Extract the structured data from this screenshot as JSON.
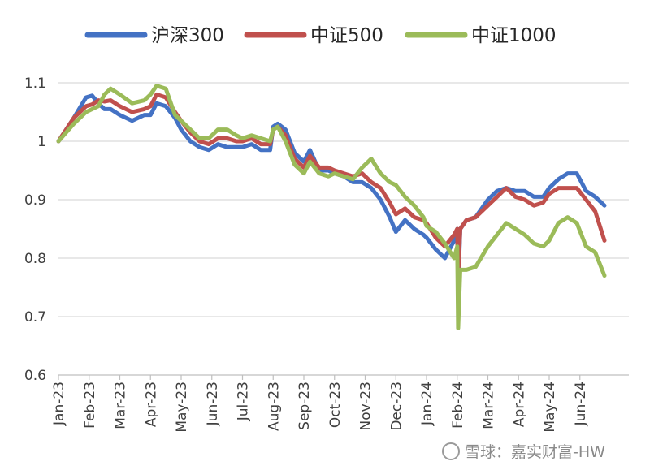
{
  "chart_data": {
    "type": "line",
    "title": "",
    "xlabel": "",
    "ylabel": "",
    "ylim": [
      0.6,
      1.1
    ],
    "yticks": [
      "0.6",
      "0.7",
      "0.8",
      "0.9",
      "1",
      "1.1"
    ],
    "grid": "horizontal",
    "legend": "top",
    "categories": [
      "Jan-23",
      "Feb-23",
      "Mar-23",
      "Apr-23",
      "May-23",
      "Jun-23",
      "Jul-23",
      "Aug-23",
      "Sep-23",
      "Oct-23",
      "Nov-23",
      "Dec-23",
      "Jan-24",
      "Feb-24",
      "Mar-24",
      "Apr-24",
      "May-24",
      "Jun-24"
    ],
    "series": [
      {
        "name": "沪深300",
        "color": "#4472C4",
        "x": [
          0,
          0.5,
          0.9,
          1.1,
          1.3,
          1.5,
          1.7,
          2,
          2.4,
          2.8,
          3,
          3.2,
          3.5,
          3.8,
          4,
          4.3,
          4.6,
          4.9,
          5.2,
          5.5,
          5.8,
          6,
          6.3,
          6.6,
          6.9,
          7,
          7.15,
          7.4,
          7.7,
          8,
          8.2,
          8.5,
          8.8,
          9,
          9.3,
          9.6,
          9.9,
          10.2,
          10.5,
          10.8,
          11,
          11.3,
          11.6,
          11.9,
          12,
          12.3,
          12.6,
          12.9,
          13,
          13.03,
          13.1,
          13.3,
          13.6,
          14,
          14.3,
          14.6,
          14.9,
          15.2,
          15.5,
          15.8,
          16,
          16.3,
          16.6,
          16.9,
          17.2,
          17.5,
          17.8
        ],
        "values": [
          1.0,
          1.04,
          1.075,
          1.078,
          1.065,
          1.055,
          1.055,
          1.045,
          1.035,
          1.045,
          1.045,
          1.065,
          1.06,
          1.04,
          1.02,
          1.0,
          0.99,
          0.985,
          0.995,
          0.99,
          0.99,
          0.99,
          0.995,
          0.985,
          0.985,
          1.025,
          1.03,
          1.02,
          0.98,
          0.965,
          0.985,
          0.95,
          0.95,
          0.945,
          0.94,
          0.93,
          0.93,
          0.92,
          0.9,
          0.87,
          0.845,
          0.865,
          0.85,
          0.84,
          0.835,
          0.815,
          0.8,
          0.83,
          0.85,
          0.75,
          0.85,
          0.865,
          0.87,
          0.9,
          0.915,
          0.92,
          0.915,
          0.915,
          0.905,
          0.905,
          0.92,
          0.935,
          0.945,
          0.945,
          0.915,
          0.905,
          0.89
        ]
      },
      {
        "name": "中证500",
        "color": "#C0504D",
        "x": [
          0,
          0.5,
          0.9,
          1.1,
          1.3,
          1.5,
          1.7,
          2,
          2.4,
          2.8,
          3,
          3.2,
          3.5,
          3.8,
          4,
          4.3,
          4.6,
          4.9,
          5.2,
          5.5,
          5.8,
          6,
          6.3,
          6.6,
          6.9,
          7,
          7.15,
          7.4,
          7.7,
          8,
          8.2,
          8.5,
          8.8,
          9,
          9.3,
          9.6,
          9.9,
          10.2,
          10.5,
          10.8,
          11,
          11.3,
          11.6,
          11.9,
          12,
          12.3,
          12.6,
          12.9,
          13,
          13.03,
          13.1,
          13.3,
          13.6,
          14,
          14.3,
          14.6,
          14.9,
          15.2,
          15.5,
          15.8,
          16,
          16.3,
          16.6,
          16.9,
          17.2,
          17.5,
          17.8
        ],
        "values": [
          1.0,
          1.04,
          1.06,
          1.063,
          1.07,
          1.068,
          1.07,
          1.06,
          1.05,
          1.055,
          1.06,
          1.08,
          1.075,
          1.05,
          1.035,
          1.015,
          1.0,
          0.995,
          1.005,
          1.005,
          1.0,
          1.0,
          1.005,
          0.995,
          0.995,
          1.02,
          1.025,
          1.01,
          0.97,
          0.955,
          0.975,
          0.955,
          0.955,
          0.95,
          0.945,
          0.94,
          0.945,
          0.93,
          0.92,
          0.895,
          0.875,
          0.885,
          0.87,
          0.865,
          0.86,
          0.835,
          0.82,
          0.84,
          0.85,
          0.77,
          0.85,
          0.865,
          0.87,
          0.89,
          0.905,
          0.92,
          0.905,
          0.9,
          0.89,
          0.895,
          0.91,
          0.92,
          0.92,
          0.92,
          0.9,
          0.88,
          0.83
        ]
      },
      {
        "name": "中证1000",
        "color": "#9BBB59",
        "x": [
          0,
          0.5,
          0.9,
          1.1,
          1.3,
          1.5,
          1.7,
          2,
          2.4,
          2.8,
          3,
          3.2,
          3.5,
          3.8,
          4,
          4.3,
          4.6,
          4.9,
          5.2,
          5.5,
          5.8,
          6,
          6.3,
          6.6,
          6.9,
          7,
          7.15,
          7.4,
          7.7,
          8,
          8.2,
          8.5,
          8.8,
          9,
          9.3,
          9.6,
          9.9,
          10.2,
          10.5,
          10.8,
          11,
          11.3,
          11.6,
          11.9,
          12,
          12.3,
          12.6,
          12.9,
          13,
          13.03,
          13.1,
          13.3,
          13.6,
          14,
          14.3,
          14.6,
          14.9,
          15.2,
          15.5,
          15.8,
          16,
          16.3,
          16.6,
          16.9,
          17.2,
          17.5,
          17.8
        ],
        "values": [
          1.0,
          1.03,
          1.05,
          1.055,
          1.06,
          1.08,
          1.09,
          1.08,
          1.065,
          1.07,
          1.08,
          1.095,
          1.09,
          1.045,
          1.035,
          1.02,
          1.005,
          1.005,
          1.02,
          1.02,
          1.01,
          1.005,
          1.01,
          1.005,
          1.0,
          1.02,
          1.025,
          1.0,
          0.96,
          0.945,
          0.965,
          0.945,
          0.94,
          0.945,
          0.94,
          0.935,
          0.955,
          0.97,
          0.945,
          0.93,
          0.925,
          0.905,
          0.89,
          0.87,
          0.855,
          0.845,
          0.825,
          0.8,
          0.82,
          0.68,
          0.78,
          0.78,
          0.785,
          0.82,
          0.84,
          0.86,
          0.85,
          0.84,
          0.825,
          0.82,
          0.83,
          0.86,
          0.87,
          0.86,
          0.82,
          0.81,
          0.77
        ]
      }
    ]
  },
  "watermark": {
    "text": "雪球：嘉实财富-HW"
  }
}
